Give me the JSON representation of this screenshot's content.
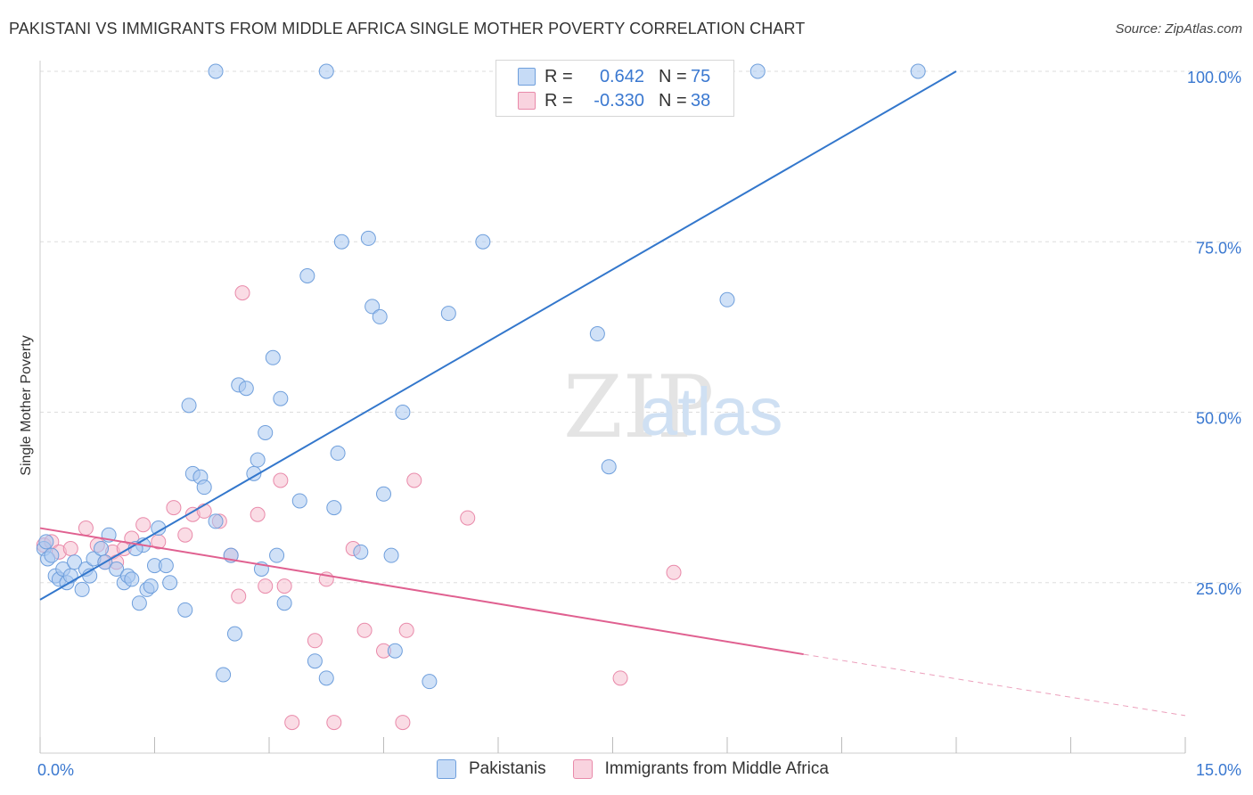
{
  "header": {
    "title": "PAKISTANI VS IMMIGRANTS FROM MIDDLE AFRICA SINGLE MOTHER POVERTY CORRELATION CHART",
    "source": "Source: ZipAtlas.com"
  },
  "watermark": {
    "zip": "ZIP",
    "atlas": "atlas"
  },
  "legend_top": {
    "rows": [
      {
        "r_label": "R =",
        "r_value": "0.642",
        "n_label": "N =",
        "n_value": "75",
        "color": "#a9c8f0"
      },
      {
        "r_label": "R =",
        "r_value": "-0.330",
        "n_label": "N =",
        "n_value": "38",
        "color": "#f6bfd0"
      }
    ]
  },
  "legend_bottom": {
    "items": [
      {
        "label": "Pakistanis",
        "color": "#a9c8f0"
      },
      {
        "label": "Immigrants from Middle Africa",
        "color": "#f6bfd0"
      }
    ]
  },
  "colors": {
    "blue_fill": "#a9c8f0",
    "blue_stroke": "#6f9fdc",
    "blue_line": "#3377cc",
    "pink_fill": "#f6bfd0",
    "pink_stroke": "#e98aaa",
    "pink_line": "#e06090",
    "tick_label": "#3a78d0",
    "grid": "#dddddd"
  },
  "chart_data": {
    "type": "scatter",
    "ylabel": "Single Mother Poverty",
    "xlim": [
      0,
      15
    ],
    "ylim": [
      0,
      100
    ],
    "x_ticks": [
      "0.0%",
      "15.0%"
    ],
    "y_ticks": [
      {
        "value": 25,
        "label": "25.0%"
      },
      {
        "value": 50,
        "label": "50.0%"
      },
      {
        "value": 75,
        "label": "75.0%"
      },
      {
        "value": 100,
        "label": "100.0%"
      }
    ],
    "series": [
      {
        "name": "Pakistanis",
        "r": 0.642,
        "n": 75,
        "trend": {
          "x1": 0.0,
          "y1": 22.5,
          "x2": 12.0,
          "y2": 100.0
        },
        "points": [
          [
            0.05,
            30.0
          ],
          [
            0.08,
            31.0
          ],
          [
            0.1,
            28.5
          ],
          [
            0.15,
            29.0
          ],
          [
            0.2,
            26.0
          ],
          [
            0.25,
            25.5
          ],
          [
            0.3,
            27.0
          ],
          [
            0.35,
            25.0
          ],
          [
            0.4,
            26.0
          ],
          [
            0.45,
            28.0
          ],
          [
            0.55,
            24.0
          ],
          [
            0.6,
            27.0
          ],
          [
            0.7,
            28.5
          ],
          [
            0.8,
            30.0
          ],
          [
            0.85,
            28.0
          ],
          [
            0.9,
            32.0
          ],
          [
            1.0,
            27.0
          ],
          [
            1.1,
            25.0
          ],
          [
            1.15,
            26.0
          ],
          [
            1.2,
            25.5
          ],
          [
            1.3,
            22.0
          ],
          [
            1.35,
            30.5
          ],
          [
            1.4,
            24.0
          ],
          [
            1.5,
            27.5
          ],
          [
            1.55,
            33.0
          ],
          [
            1.65,
            27.5
          ],
          [
            1.7,
            25.0
          ],
          [
            1.9,
            21.0
          ],
          [
            1.95,
            51.0
          ],
          [
            2.0,
            41.0
          ],
          [
            2.1,
            40.5
          ],
          [
            2.15,
            39.0
          ],
          [
            2.3,
            34.0
          ],
          [
            2.4,
            11.5
          ],
          [
            2.5,
            29.0
          ],
          [
            2.6,
            54.0
          ],
          [
            2.7,
            53.5
          ],
          [
            2.8,
            41.0
          ],
          [
            2.85,
            43.0
          ],
          [
            2.9,
            27.0
          ],
          [
            2.95,
            47.0
          ],
          [
            3.1,
            29.0
          ],
          [
            3.2,
            22.0
          ],
          [
            3.05,
            58.0
          ],
          [
            3.15,
            52.0
          ],
          [
            3.4,
            37.0
          ],
          [
            3.5,
            70.0
          ],
          [
            3.6,
            13.5
          ],
          [
            3.75,
            11.0
          ],
          [
            3.85,
            36.0
          ],
          [
            3.9,
            44.0
          ],
          [
            3.95,
            75.0
          ],
          [
            4.3,
            75.5
          ],
          [
            4.35,
            65.5
          ],
          [
            4.45,
            64.0
          ],
          [
            4.5,
            38.0
          ],
          [
            4.6,
            29.0
          ],
          [
            4.65,
            15.0
          ],
          [
            4.75,
            50.0
          ],
          [
            5.1,
            10.5
          ],
          [
            5.35,
            64.5
          ],
          [
            5.8,
            75.0
          ],
          [
            7.3,
            61.5
          ],
          [
            7.45,
            42.0
          ],
          [
            9.0,
            66.5
          ],
          [
            2.3,
            100.0
          ],
          [
            3.75,
            100.0
          ],
          [
            6.3,
            100.0
          ],
          [
            9.4,
            100.0
          ],
          [
            11.5,
            100.0
          ],
          [
            2.55,
            17.5
          ],
          [
            1.45,
            24.5
          ],
          [
            0.65,
            26.0
          ],
          [
            1.25,
            30.0
          ],
          [
            4.2,
            29.5
          ]
        ]
      },
      {
        "name": "Immigrants from Middle Africa",
        "r": -0.33,
        "n": 38,
        "trend": {
          "x1": 0.0,
          "y1": 33.0,
          "x2": 10.0,
          "y2": 14.5
        },
        "trend_dashed_to": {
          "x": 15.0,
          "y": 5.5
        },
        "points": [
          [
            0.05,
            30.5
          ],
          [
            0.15,
            31.0
          ],
          [
            0.25,
            29.5
          ],
          [
            0.4,
            30.0
          ],
          [
            0.6,
            33.0
          ],
          [
            0.75,
            30.5
          ],
          [
            0.85,
            28.0
          ],
          [
            0.95,
            29.5
          ],
          [
            1.1,
            30.0
          ],
          [
            1.2,
            31.5
          ],
          [
            1.35,
            33.5
          ],
          [
            1.55,
            31.0
          ],
          [
            1.75,
            36.0
          ],
          [
            1.9,
            32.0
          ],
          [
            2.0,
            35.0
          ],
          [
            2.15,
            35.5
          ],
          [
            2.35,
            34.0
          ],
          [
            2.5,
            29.0
          ],
          [
            2.6,
            23.0
          ],
          [
            2.65,
            67.5
          ],
          [
            2.85,
            35.0
          ],
          [
            2.95,
            24.5
          ],
          [
            3.15,
            40.0
          ],
          [
            3.2,
            24.5
          ],
          [
            3.3,
            4.5
          ],
          [
            3.6,
            16.5
          ],
          [
            3.75,
            25.5
          ],
          [
            3.85,
            4.5
          ],
          [
            4.1,
            30.0
          ],
          [
            4.25,
            18.0
          ],
          [
            4.5,
            15.0
          ],
          [
            4.75,
            4.5
          ],
          [
            4.8,
            18.0
          ],
          [
            4.9,
            40.0
          ],
          [
            5.6,
            34.5
          ],
          [
            7.6,
            11.0
          ],
          [
            8.3,
            26.5
          ],
          [
            1.0,
            28.0
          ]
        ]
      }
    ]
  }
}
